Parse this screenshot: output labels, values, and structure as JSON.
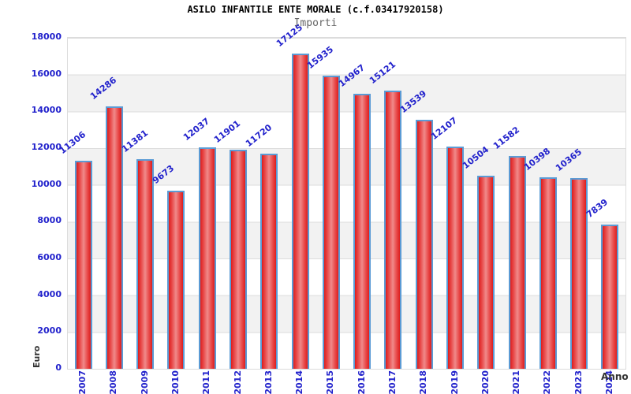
{
  "header": {
    "title": "ASILO INFANTILE ENTE MORALE (c.f.03417920158)",
    "subtitle": "Importi"
  },
  "chart_data": {
    "type": "bar",
    "title": "ASILO INFANTILE ENTE MORALE (c.f.03417920158)",
    "subtitle": "Importi",
    "categories": [
      "2007",
      "2008",
      "2009",
      "2010",
      "2011",
      "2012",
      "2013",
      "2014",
      "2015",
      "2016",
      "2017",
      "2018",
      "2019",
      "2020",
      "2021",
      "2022",
      "2023",
      "2024"
    ],
    "values": [
      11306,
      14286,
      11381,
      9673,
      12037,
      11901,
      11720,
      17125,
      15935,
      14967,
      15121,
      13539,
      12107,
      10504,
      11582,
      10398,
      10365,
      7839
    ],
    "xlabel": "Anno",
    "ylabel": "Euro",
    "ylim": [
      0,
      18000
    ],
    "y_tick_step": 2000,
    "y_tick_labels": [
      "0",
      "2000",
      "4000",
      "6000",
      "8000",
      "10000",
      "12000",
      "14000",
      "16000",
      "18000"
    ],
    "grid": true,
    "legend": null,
    "bar_value_labels_rotated": true,
    "colors": {
      "accent-blue": "#2222cc",
      "bar-border": "#5b9bd5",
      "bar-edge": "#dc1e1e",
      "bar-mid": "#f08a8a",
      "band-color": "#f2f2f2",
      "grid-color": "#dcdcdc",
      "title-color": "#000000",
      "subtitle-color": "#666666",
      "axis-title-color": "#333333"
    }
  }
}
